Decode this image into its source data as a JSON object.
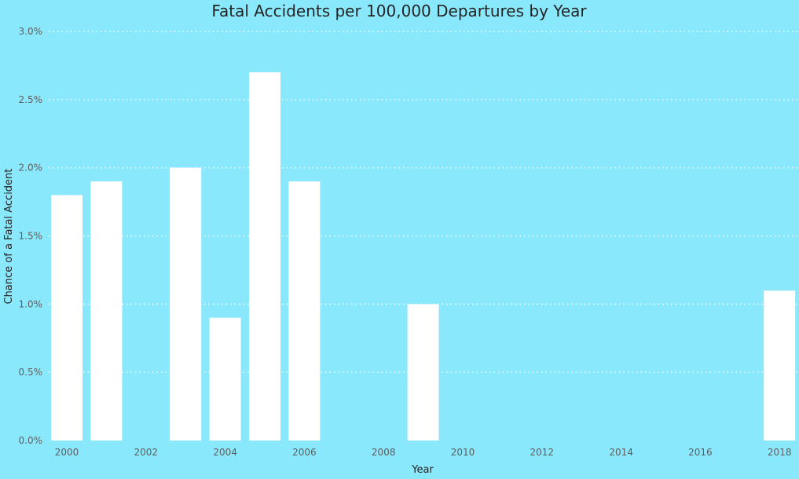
{
  "chart_data": {
    "type": "bar",
    "title": "Fatal Accidents per 100,000 Departures by Year",
    "xlabel": "Year",
    "ylabel": "Chance of a Fatal Accident",
    "categories": [
      "2000",
      "2001",
      "2003",
      "2004",
      "2005",
      "2006",
      "2009",
      "2018"
    ],
    "x": [
      2000,
      2001,
      2003,
      2004,
      2005,
      2006,
      2009,
      2018
    ],
    "values": [
      1.8,
      1.9,
      2.0,
      0.9,
      2.7,
      1.9,
      1.0,
      1.1
    ],
    "value_unit": "%",
    "ylim": [
      0,
      3.0
    ],
    "xlim": [
      2000,
      2018
    ],
    "y_ticks": [
      "0.0%",
      "0.5%",
      "1.0%",
      "1.5%",
      "2.0%",
      "2.5%",
      "3.0%"
    ],
    "x_ticks": [
      "2000",
      "2002",
      "2004",
      "2006",
      "2008",
      "2010",
      "2012",
      "2014",
      "2016",
      "2018"
    ],
    "grid": true,
    "colors": {
      "background": "#8ae8fd",
      "bar": "#ffffff",
      "text": "#252423",
      "tick": "#605e5c"
    }
  }
}
